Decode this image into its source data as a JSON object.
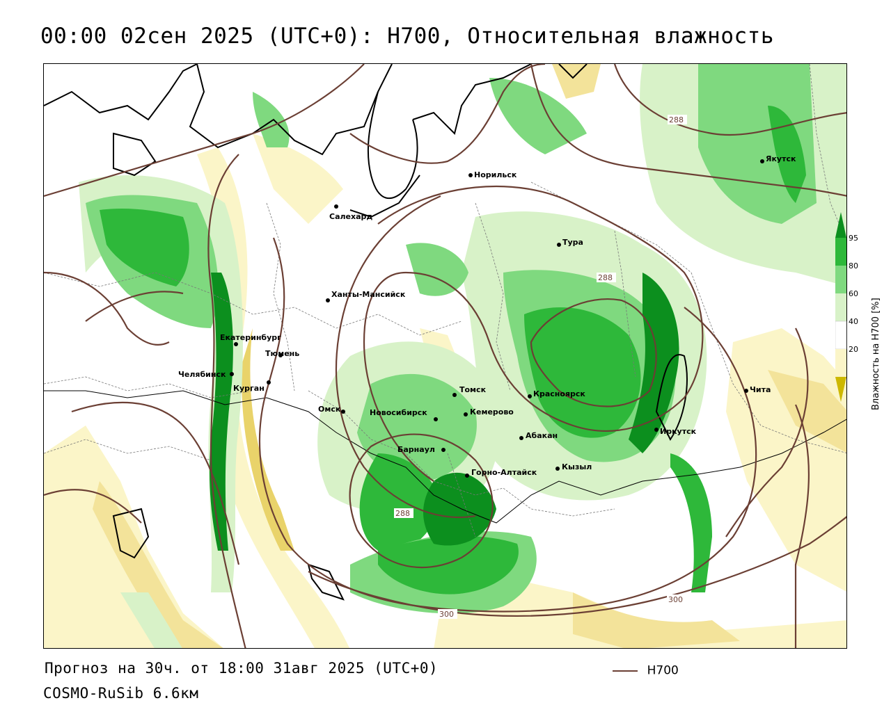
{
  "header": {
    "title": "00:00 02сен 2025 (UTC+0): H700, Относительная влажность"
  },
  "footer": {
    "forecast": "Прогноз на 30ч. от 18:00 31авг 2025 (UTC+0)",
    "model": "COSMO-RuSib 6.6км"
  },
  "legend": {
    "line_label": "H700",
    "line_color": "#6b3f34"
  },
  "colorbar": {
    "title": "Влажность на H700 [%]",
    "ticks": [
      "95",
      "80",
      "60",
      "40",
      "20"
    ],
    "colors": [
      "#cdb800",
      "#f3e39a",
      "#fbf5c8",
      "#ffffff",
      "#d8f2c8",
      "#7fd97f",
      "#2eb83a",
      "#0c8f1e"
    ]
  },
  "cities": [
    {
      "name": "Норильск"
    },
    {
      "name": "Якутск"
    },
    {
      "name": "Салехард"
    },
    {
      "name": "Тура"
    },
    {
      "name": "Ханты-Мансийск"
    },
    {
      "name": "Екатеринбург"
    },
    {
      "name": "Тюмень"
    },
    {
      "name": "Челябинск"
    },
    {
      "name": "Курган"
    },
    {
      "name": "Томск"
    },
    {
      "name": "Красноярск"
    },
    {
      "name": "Чита"
    },
    {
      "name": "Омск"
    },
    {
      "name": "Новосибирск"
    },
    {
      "name": "Кемерово"
    },
    {
      "name": "Иркутск"
    },
    {
      "name": "Абакан"
    },
    {
      "name": "Барнаул"
    },
    {
      "name": "Кызыл"
    },
    {
      "name": "Горно-Алтайск"
    }
  ],
  "contour_labels": [
    "288",
    "288",
    "288",
    "300",
    "300"
  ]
}
